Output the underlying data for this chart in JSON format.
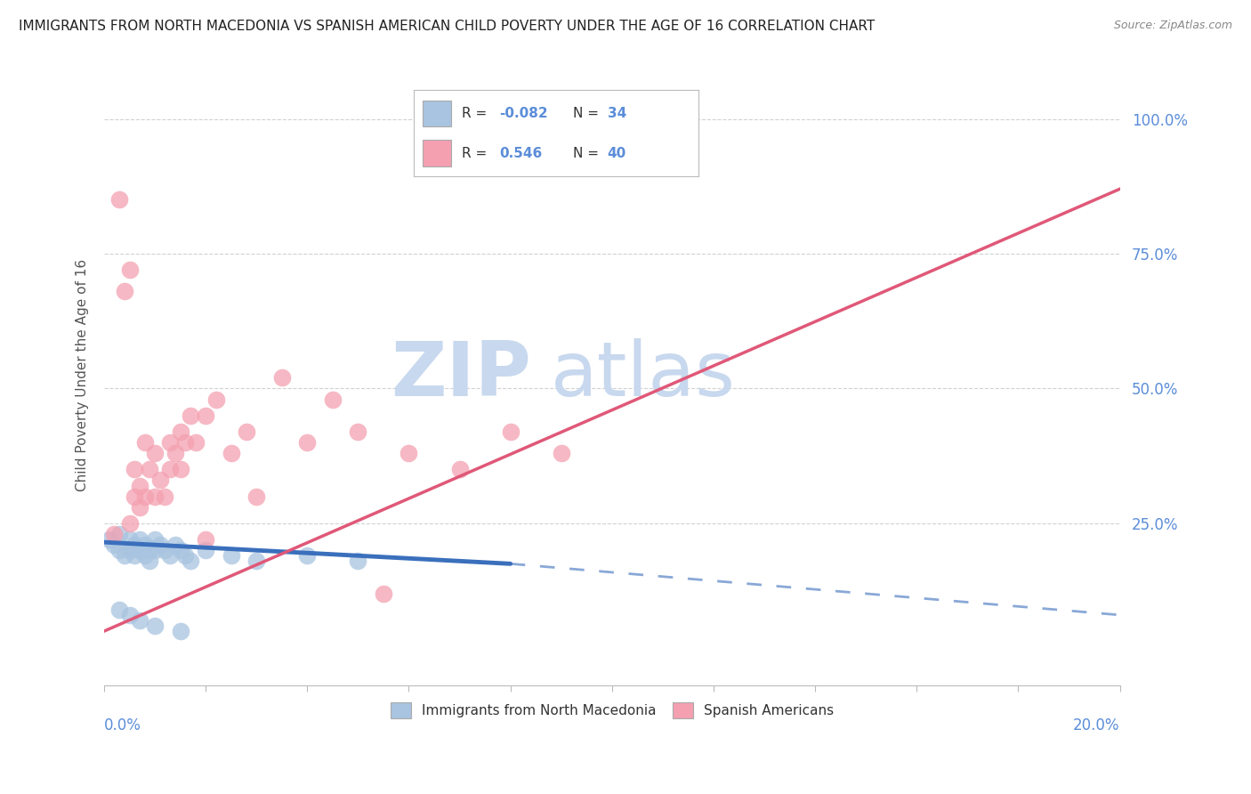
{
  "title": "IMMIGRANTS FROM NORTH MACEDONIA VS SPANISH AMERICAN CHILD POVERTY UNDER THE AGE OF 16 CORRELATION CHART",
  "source": "Source: ZipAtlas.com",
  "ylabel": "Child Poverty Under the Age of 16",
  "ytick_labels": [
    "25.0%",
    "50.0%",
    "75.0%",
    "100.0%"
  ],
  "ytick_values": [
    25,
    50,
    75,
    100
  ],
  "xlim": [
    0,
    20
  ],
  "ylim": [
    -5,
    110
  ],
  "legend_r1": "R = -0.082",
  "legend_n1": "N = 34",
  "legend_r2": "R =  0.546",
  "legend_n2": "N = 40",
  "legend_label1": "Immigrants from North Macedonia",
  "legend_label2": "Spanish Americans",
  "blue_color": "#a8c4e0",
  "pink_color": "#f4a0b0",
  "blue_line_color": "#3a6fbc",
  "pink_line_color": "#e05878",
  "title_color": "#222222",
  "axis_label_color": "#5b8dd9",
  "grid_color": "#cccccc",
  "watermark_color": "#dce6f0",
  "blue_scatter": [
    [
      0.1,
      22
    ],
    [
      0.2,
      21
    ],
    [
      0.3,
      20
    ],
    [
      0.3,
      23
    ],
    [
      0.4,
      19
    ],
    [
      0.5,
      22
    ],
    [
      0.5,
      20
    ],
    [
      0.6,
      21
    ],
    [
      0.6,
      19
    ],
    [
      0.7,
      22
    ],
    [
      0.7,
      20
    ],
    [
      0.8,
      21
    ],
    [
      0.8,
      19
    ],
    [
      0.9,
      20
    ],
    [
      0.9,
      18
    ],
    [
      1.0,
      22
    ],
    [
      1.0,
      20
    ],
    [
      1.1,
      21
    ],
    [
      1.2,
      20
    ],
    [
      1.3,
      19
    ],
    [
      1.4,
      21
    ],
    [
      1.5,
      20
    ],
    [
      1.6,
      19
    ],
    [
      1.7,
      18
    ],
    [
      2.0,
      20
    ],
    [
      2.5,
      19
    ],
    [
      3.0,
      18
    ],
    [
      4.0,
      19
    ],
    [
      5.0,
      18
    ],
    [
      0.3,
      9
    ],
    [
      0.5,
      8
    ],
    [
      0.7,
      7
    ],
    [
      1.0,
      6
    ],
    [
      1.5,
      5
    ]
  ],
  "pink_scatter": [
    [
      0.2,
      23
    ],
    [
      0.3,
      85
    ],
    [
      0.4,
      68
    ],
    [
      0.5,
      25
    ],
    [
      0.5,
      72
    ],
    [
      0.6,
      30
    ],
    [
      0.6,
      35
    ],
    [
      0.7,
      28
    ],
    [
      0.7,
      32
    ],
    [
      0.8,
      40
    ],
    [
      0.8,
      30
    ],
    [
      0.9,
      35
    ],
    [
      1.0,
      38
    ],
    [
      1.0,
      30
    ],
    [
      1.1,
      33
    ],
    [
      1.2,
      30
    ],
    [
      1.3,
      40
    ],
    [
      1.3,
      35
    ],
    [
      1.4,
      38
    ],
    [
      1.5,
      42
    ],
    [
      1.5,
      35
    ],
    [
      1.6,
      40
    ],
    [
      1.7,
      45
    ],
    [
      1.8,
      40
    ],
    [
      2.0,
      45
    ],
    [
      2.0,
      22
    ],
    [
      2.2,
      48
    ],
    [
      2.5,
      38
    ],
    [
      2.8,
      42
    ],
    [
      3.0,
      30
    ],
    [
      3.5,
      52
    ],
    [
      4.0,
      40
    ],
    [
      4.5,
      48
    ],
    [
      5.0,
      42
    ],
    [
      5.5,
      12
    ],
    [
      6.0,
      38
    ],
    [
      7.0,
      35
    ],
    [
      8.0,
      42
    ],
    [
      9.0,
      38
    ],
    [
      9.0,
      102
    ]
  ],
  "blue_line": {
    "x0": 0.0,
    "y0": 21.5,
    "x1": 8.0,
    "y1": 17.5,
    "x_dash_end": 20.0,
    "y_dash_end": 8.0
  },
  "pink_line": {
    "x0": 0.0,
    "y0": 5.0,
    "x1": 20.0,
    "y1": 87.0
  }
}
